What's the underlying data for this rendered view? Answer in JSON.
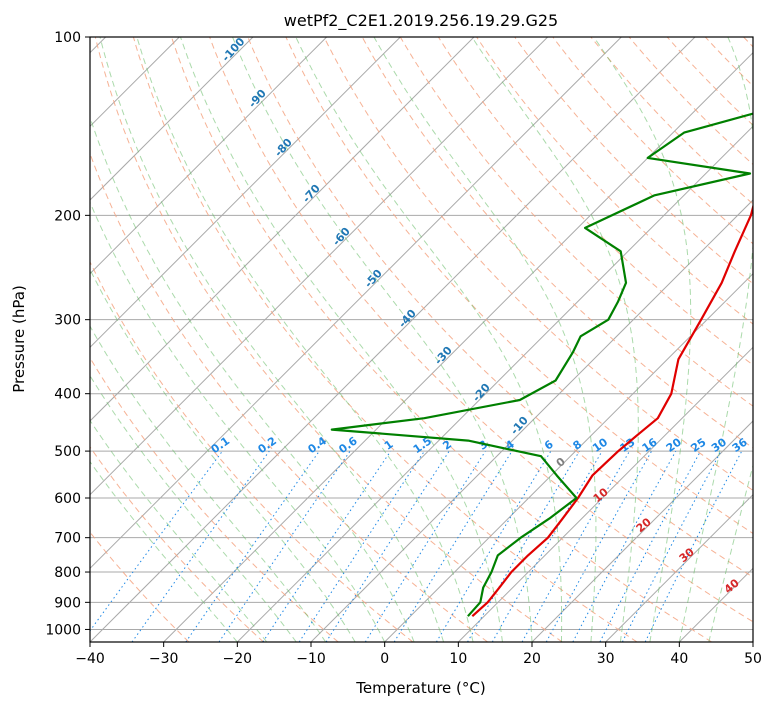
{
  "chart_data": {
    "type": "line",
    "subtype": "skew-t log-p",
    "title": "wetPf2_C2E1.2019.256.19.29.G25",
    "xlabel": "Temperature (°C)",
    "ylabel": "Pressure (hPa)",
    "xlim": [
      -40,
      50
    ],
    "ylim": [
      1050,
      100
    ],
    "yscale": "log",
    "grid": true,
    "x_ticks": [
      -40,
      -30,
      -20,
      -10,
      0,
      10,
      20,
      30,
      40,
      50
    ],
    "x_tick_labels": [
      "−40",
      "−30",
      "−20",
      "−10",
      "0",
      "10",
      "20",
      "30",
      "40",
      "50"
    ],
    "y_ticks": [
      1000,
      900,
      800,
      700,
      600,
      500,
      400,
      300,
      200,
      100
    ],
    "y_tick_labels": [
      "1000",
      "900",
      "800",
      "700",
      "600",
      "500",
      "400",
      "300",
      "200",
      "100"
    ],
    "colors": {
      "temperature": "#e00000",
      "dewpoint": "#008000",
      "isotherm": "#a9a9a9",
      "dry_adiabat": "#f4a582",
      "moist_adiabat": "#66bb66",
      "mixing_ratio": "#1e88e5",
      "mixing_label": "#1e88e5",
      "moist_label": "#1f77b4",
      "dry_label": "#d62728",
      "zero_label": "#7f7f7f",
      "frame": "#000000"
    },
    "series": [
      {
        "name": "",
        "role": "temperature",
        "points": [
          [
            8.4,
            950
          ],
          [
            8.6,
            900
          ],
          [
            8.2,
            850
          ],
          [
            7.7,
            800
          ],
          [
            7.7,
            750
          ],
          [
            8.0,
            700
          ],
          [
            7.4,
            650
          ],
          [
            6.7,
            600
          ],
          [
            5.6,
            550
          ],
          [
            5.8,
            500
          ],
          [
            6.2,
            470
          ],
          [
            6.7,
            440
          ],
          [
            5.2,
            400
          ],
          [
            1.5,
            350
          ],
          [
            -0.8,
            300
          ],
          [
            -3.0,
            260
          ],
          [
            -5.5,
            230
          ],
          [
            -8.2,
            200
          ],
          [
            -10.9,
            180
          ],
          [
            -12.7,
            165
          ],
          [
            -14.4,
            150
          ],
          [
            -17.6,
            140
          ],
          [
            -20.3,
            130
          ],
          [
            -21.7,
            120
          ],
          [
            -22.9,
            110
          ],
          [
            -23.0,
            100
          ]
        ]
      },
      {
        "name": "",
        "role": "dewpoint",
        "points": [
          [
            7.8,
            950
          ],
          [
            7.6,
            900
          ],
          [
            6.0,
            850
          ],
          [
            5.0,
            800
          ],
          [
            3.6,
            750
          ],
          [
            4.3,
            700
          ],
          [
            5.6,
            650
          ],
          [
            6.5,
            600
          ],
          [
            0.8,
            550
          ],
          [
            -4.0,
            510
          ],
          [
            -16.0,
            480
          ],
          [
            -36.0,
            460
          ],
          [
            -25.0,
            440
          ],
          [
            -14.5,
            410
          ],
          [
            -12.3,
            380
          ],
          [
            -13.8,
            340
          ],
          [
            -14.9,
            320
          ],
          [
            -13.4,
            300
          ],
          [
            -14.5,
            280
          ],
          [
            -16.0,
            260
          ],
          [
            -21.0,
            230
          ],
          [
            -29.0,
            210
          ],
          [
            -24.0,
            185
          ],
          [
            -14.0,
            170
          ],
          [
            -30.0,
            160
          ],
          [
            -28.5,
            145
          ],
          [
            -17.0,
            128
          ],
          [
            -10.0,
            120
          ],
          [
            -5.0,
            110
          ],
          [
            -1.5,
            100
          ]
        ]
      }
    ],
    "annotations": {
      "mixing_ratio_labels": [
        "0.1",
        "0.2",
        "0.4",
        "0.6",
        "1",
        "1.5",
        "2",
        "3",
        "4",
        "6",
        "8",
        "10",
        "13",
        "16",
        "20",
        "25",
        "30",
        "36"
      ],
      "moist_adiabat_labels": [
        "-100",
        "-90",
        "-80",
        "-70",
        "-60",
        "-50",
        "-40",
        "-30",
        "-20",
        "-10"
      ],
      "dry_adiabat_labels": [
        "0",
        "10",
        "20",
        "30",
        "40"
      ]
    }
  }
}
